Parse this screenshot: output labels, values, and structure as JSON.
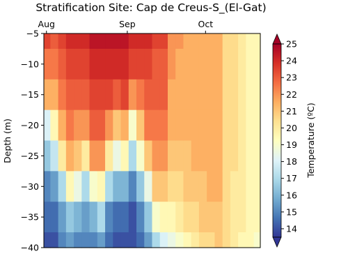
{
  "chart_data": {
    "type": "heatmap",
    "title": "Stratification Site: Cap de Creus-S_(El-Gat)",
    "xlabel": "",
    "ylabel": "Depth (m)",
    "x_axis_position": "top",
    "x_ticks": [
      "Aug",
      "Sep",
      "Oct"
    ],
    "x_range": [
      "2023-07-31",
      "2023-10-22"
    ],
    "y_ticks": [
      -5,
      -10,
      -15,
      -20,
      -25,
      -30,
      -35,
      -40
    ],
    "ylim": [
      -40,
      -5
    ],
    "grid": false,
    "colorbar": {
      "label": "Temperature (ºC)",
      "colormap": "RdYlBu_r",
      "range": [
        13.5,
        25
      ],
      "ticks": [
        14,
        15,
        16,
        17,
        18,
        19,
        20,
        21,
        22,
        23,
        24,
        25
      ],
      "extend": "both",
      "colors": [
        "#313695",
        "#4575b4",
        "#74add1",
        "#abd9e9",
        "#e0f3f8",
        "#ffffbf",
        "#fee090",
        "#fdae61",
        "#f46d43",
        "#d73027",
        "#a50026"
      ]
    },
    "depths": [
      -5,
      -10,
      -15,
      -20,
      -25,
      -30,
      -35,
      -40
    ],
    "columns": [
      {
        "date": "2023-08-01",
        "temps": [
          23.5,
          22.5,
          21.5,
          18,
          16.5,
          15,
          14.5,
          14
        ]
      },
      {
        "date": "2023-08-04",
        "temps": [
          23,
          22.5,
          21.5,
          19.5,
          17.5,
          15.5,
          14.5,
          14
        ]
      },
      {
        "date": "2023-08-07",
        "temps": [
          23.5,
          23,
          22.5,
          21.5,
          20,
          17,
          15.5,
          15
        ]
      },
      {
        "date": "2023-08-10",
        "temps": [
          24,
          23.5,
          23,
          22.5,
          21.5,
          19.5,
          16.5,
          15.5
        ]
      },
      {
        "date": "2023-08-13",
        "temps": [
          24,
          23.5,
          23,
          22,
          21,
          18.5,
          16,
          15
        ]
      },
      {
        "date": "2023-08-16",
        "temps": [
          24,
          23.5,
          23,
          22,
          20,
          17,
          15.5,
          15
        ]
      },
      {
        "date": "2023-08-19",
        "temps": [
          24.5,
          24,
          23.5,
          23,
          22,
          19,
          16,
          15
        ]
      },
      {
        "date": "2023-08-22",
        "temps": [
          24.5,
          24,
          23.5,
          23,
          22,
          19.5,
          17,
          15.5
        ]
      },
      {
        "date": "2023-08-25",
        "temps": [
          24.5,
          24,
          23.5,
          22,
          20,
          17,
          15,
          14.5
        ]
      },
      {
        "date": "2023-08-28",
        "temps": [
          24.5,
          24,
          23,
          21,
          18.5,
          16,
          14.5,
          14
        ]
      },
      {
        "date": "2023-08-31",
        "temps": [
          24.5,
          24,
          23.5,
          21.5,
          19.5,
          16,
          14.5,
          14
        ]
      },
      {
        "date": "2023-09-03",
        "temps": [
          24,
          23.5,
          22,
          19,
          17,
          15,
          14,
          14
        ]
      },
      {
        "date": "2023-09-06",
        "temps": [
          24,
          23.5,
          22.5,
          21,
          19,
          16.5,
          15,
          14.5
        ]
      },
      {
        "date": "2023-09-09",
        "temps": [
          24,
          23.5,
          23,
          22.5,
          21,
          18.5,
          16.5,
          15.5
        ]
      },
      {
        "date": "2023-09-12",
        "temps": [
          23.5,
          23,
          23,
          22.5,
          22,
          21,
          19,
          17
        ]
      },
      {
        "date": "2023-09-15",
        "temps": [
          23.5,
          23,
          23,
          22.5,
          22,
          21,
          19.5,
          18
        ]
      },
      {
        "date": "2023-09-18",
        "temps": [
          22,
          22,
          21.5,
          21.5,
          21,
          20.5,
          19.5,
          18.5
        ]
      },
      {
        "date": "2023-09-21",
        "temps": [
          22,
          21.5,
          21.5,
          21.5,
          21,
          20.5,
          20,
          19
        ]
      },
      {
        "date": "2023-09-24",
        "temps": [
          21.5,
          21.5,
          21.5,
          21.5,
          21,
          21,
          20.5,
          19.5
        ]
      },
      {
        "date": "2023-09-27",
        "temps": [
          21.5,
          21.5,
          21.5,
          21.5,
          21.5,
          21,
          20.5,
          20
        ]
      },
      {
        "date": "2023-09-30",
        "temps": [
          21.5,
          21.5,
          21.5,
          21.5,
          21.5,
          21,
          21,
          20.5
        ]
      },
      {
        "date": "2023-10-03",
        "temps": [
          21.5,
          21.5,
          21.5,
          21.5,
          21.5,
          21.5,
          21,
          20.5
        ]
      },
      {
        "date": "2023-10-06",
        "temps": [
          21.5,
          21.5,
          21.5,
          21.5,
          21.5,
          21.5,
          21,
          21
        ]
      },
      {
        "date": "2023-10-09",
        "temps": [
          20.5,
          20.5,
          20.5,
          20.5,
          20.5,
          20.5,
          20.5,
          20.5
        ]
      },
      {
        "date": "2023-10-12",
        "temps": [
          20.5,
          20.5,
          20.5,
          20.5,
          20.5,
          20,
          20,
          20
        ]
      },
      {
        "date": "2023-10-15",
        "temps": [
          20,
          20,
          20,
          20,
          20,
          20,
          20,
          19.5
        ]
      },
      {
        "date": "2023-10-18",
        "temps": [
          19.5,
          19.5,
          19.5,
          19.5,
          19.5,
          19.5,
          19.5,
          19.5
        ]
      },
      {
        "date": "2023-10-21",
        "temps": [
          19.5,
          19.5,
          19.5,
          19.5,
          19.5,
          19.5,
          19.5,
          19
        ]
      }
    ]
  }
}
